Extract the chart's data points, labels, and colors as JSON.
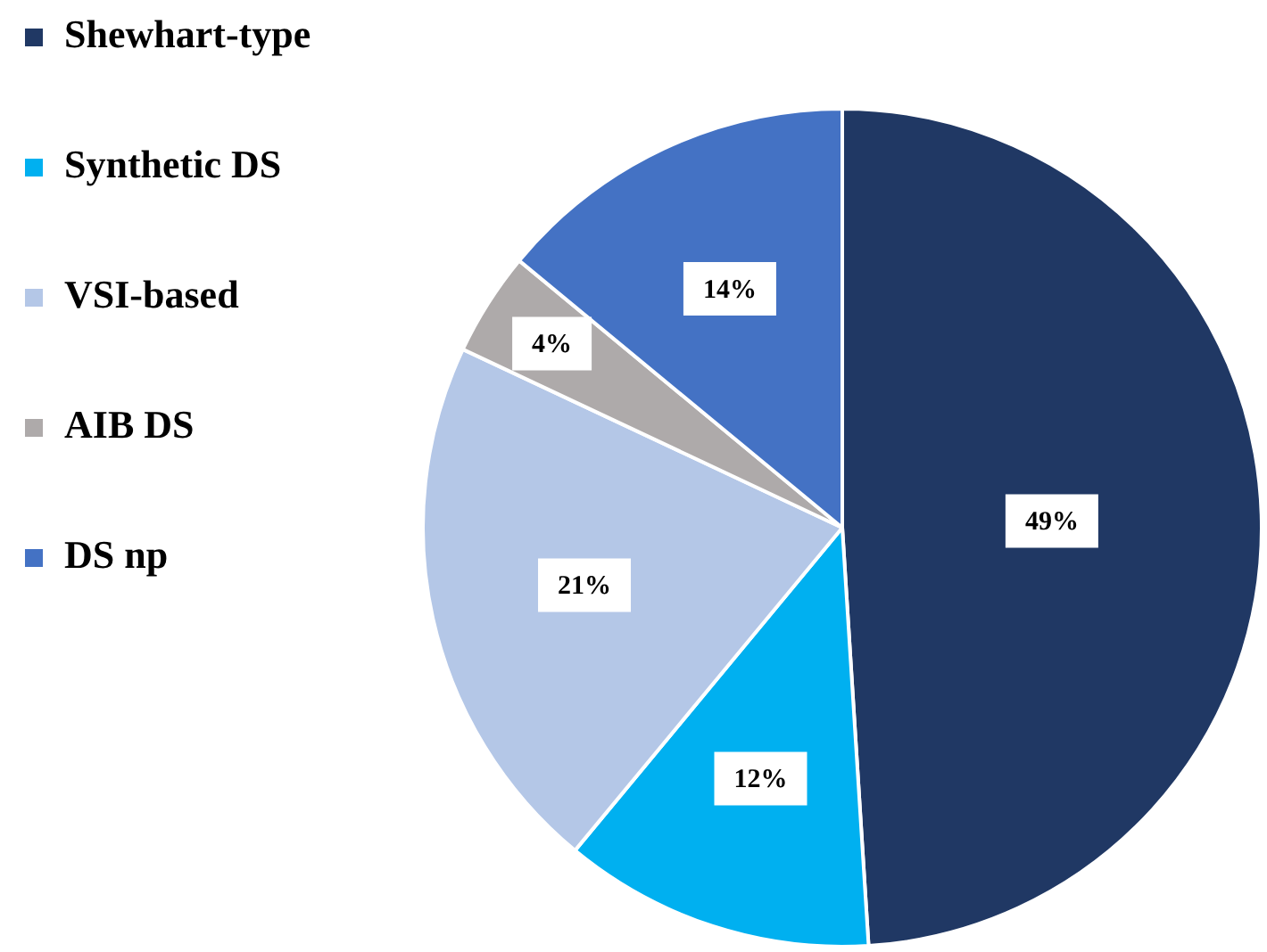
{
  "chart_data": {
    "type": "pie",
    "categories": [
      "Shewhart-type",
      "Synthetic DS",
      "VSI-based",
      "AIB DS",
      "DS np"
    ],
    "values": [
      49,
      12,
      21,
      4,
      14
    ],
    "colors": [
      "#203864",
      "#00b0f0",
      "#b4c7e7",
      "#aeaaaa",
      "#4472c4"
    ],
    "value_labels": [
      "49%",
      "12%",
      "21%",
      "4%",
      "14%"
    ],
    "legend": "top left"
  }
}
